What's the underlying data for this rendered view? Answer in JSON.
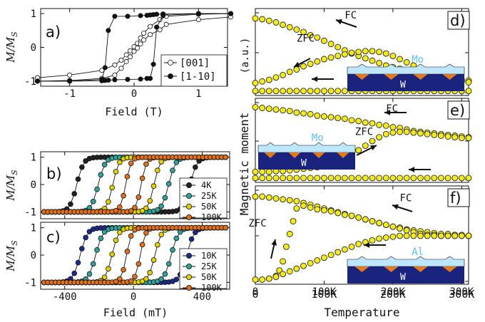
{
  "colors": {
    "hollow": "#ffffff",
    "black": "#111111",
    "k4": "#222222",
    "k10": "#1c2a8c",
    "k25": "#2fa39a",
    "k50": "#e2d000",
    "k100": "#e0701c",
    "yellow": "#f2ea19",
    "mo_layer": "#bfe6ff",
    "w_layer": "#1a237e",
    "triangle": "#e07a1c",
    "mo_text": "#5bbfff"
  },
  "chart_data": [
    {
      "id": "a",
      "type": "line",
      "panel_label": "a)",
      "ylabel": "M/M_S",
      "xlabel": "Field (T)",
      "xlim": [
        -1.45,
        1.45
      ],
      "ylim": [
        -1.15,
        1.15
      ],
      "xticks": [
        -1,
        0,
        1
      ],
      "yticks": [
        -1,
        0,
        1
      ],
      "xtick_labels": [
        "-1",
        "0",
        "1"
      ],
      "ytick_labels": [
        "-1",
        "0",
        "1"
      ],
      "legend_position": "bottom-right",
      "series": [
        {
          "name": "[001]",
          "marker": "hollow",
          "x": [
            -1.5,
            -1.0,
            -0.5,
            -0.3,
            -0.2,
            -0.12,
            -0.06,
            0.0,
            0.05,
            0.1,
            0.15,
            0.25,
            0.4,
            0.5,
            1.0,
            1.5
          ],
          "y_descending": [
            -0.9,
            -0.82,
            -0.68,
            -0.52,
            -0.38,
            -0.22,
            -0.1,
            0.02,
            0.12,
            0.28,
            0.42,
            0.62,
            0.82,
            0.92,
            0.98,
            1.0
          ],
          "y_ascending": [
            -1.0,
            -0.98,
            -0.92,
            -0.82,
            -0.62,
            -0.42,
            -0.28,
            -0.12,
            -0.02,
            0.1,
            0.22,
            0.38,
            0.52,
            0.68,
            0.82,
            0.9
          ]
        },
        {
          "name": "[1-10]",
          "marker": "filled",
          "x": [
            -1.5,
            -1.0,
            -0.5,
            -0.45,
            -0.4,
            -0.3,
            -0.1,
            0.1,
            0.2,
            0.25,
            0.3,
            0.35,
            0.45,
            1.0,
            1.5
          ],
          "y_descending": [
            -1.0,
            -1.0,
            -0.95,
            -0.6,
            0.5,
            0.92,
            0.92,
            0.94,
            0.95,
            0.96,
            0.97,
            0.98,
            0.99,
            1.0,
            1.0
          ],
          "y_ascending": [
            -1.0,
            -1.0,
            -0.99,
            -0.98,
            -0.97,
            -0.96,
            -0.95,
            -0.94,
            -0.92,
            -0.92,
            -0.5,
            0.6,
            0.95,
            1.0,
            1.0
          ]
        }
      ]
    },
    {
      "id": "b",
      "type": "line",
      "panel_label": "b)",
      "ylabel": "M/M_S",
      "xlabel": "",
      "xlim": [
        -540,
        560
      ],
      "ylim": [
        -1.25,
        1.2
      ],
      "xticks": [
        -400,
        0,
        400
      ],
      "yticks": [
        -1,
        0,
        1
      ],
      "ytick_labels": [
        "-1",
        "0",
        "1"
      ],
      "legend_position": "bottom-right",
      "series": [
        {
          "name": "4K",
          "color": "k4",
          "hc": 330,
          "w": 40
        },
        {
          "name": "25K",
          "color": "k25",
          "hc": 205,
          "w": 40
        },
        {
          "name": "50K",
          "color": "k50",
          "hc": 120,
          "w": 35
        },
        {
          "name": "100K",
          "color": "k100",
          "hc": 45,
          "w": 30
        }
      ]
    },
    {
      "id": "c",
      "type": "line",
      "panel_label": "c)",
      "ylabel": "M/M_S",
      "xlabel": "Field (mT)",
      "xlim": [
        -540,
        560
      ],
      "ylim": [
        -1.25,
        1.2
      ],
      "xticks": [
        -400,
        0,
        400
      ],
      "yticks": [
        -1,
        0,
        1
      ],
      "xtick_labels": [
        "-400",
        "0",
        "400"
      ],
      "ytick_labels": [
        "-1",
        "0",
        "1"
      ],
      "legend_position": "bottom-right",
      "series": [
        {
          "name": "10K",
          "color": "k10",
          "hc": 310,
          "w": 42
        },
        {
          "name": "25K",
          "color": "k25",
          "hc": 220,
          "w": 42
        },
        {
          "name": "50K",
          "color": "k50",
          "hc": 125,
          "w": 38
        },
        {
          "name": "100K",
          "color": "k100",
          "hc": 40,
          "w": 30
        }
      ]
    },
    {
      "id": "d",
      "type": "scatter",
      "panel_label": "d)",
      "xlim": [
        0,
        310
      ],
      "ylim": [
        0,
        1
      ],
      "xticks": [
        0,
        100,
        200,
        300
      ],
      "yticks": [
        0,
        0.5,
        1
      ],
      "series": [
        {
          "name": "FC",
          "x": [
            0,
            10,
            20,
            30,
            40,
            50,
            60,
            70,
            80,
            90,
            100,
            110,
            120,
            130,
            140,
            150,
            160,
            170,
            180,
            190,
            200,
            210,
            220,
            230,
            240,
            250,
            260,
            270,
            280,
            290,
            300,
            310
          ],
          "y": [
            0.93,
            0.92,
            0.9,
            0.88,
            0.85,
            0.82,
            0.79,
            0.76,
            0.72,
            0.69,
            0.65,
            0.61,
            0.57,
            0.53,
            0.49,
            0.46,
            0.43,
            0.4,
            0.37,
            0.34,
            0.32,
            0.3,
            0.28,
            0.26,
            0.24,
            0.22,
            0.2,
            0.19,
            0.18,
            0.17,
            0.16,
            0.15
          ]
        },
        {
          "name": "ZFC",
          "x": [
            0,
            10,
            20,
            30,
            40,
            50,
            60,
            70,
            80,
            90,
            100,
            110,
            120,
            130,
            140,
            150,
            160,
            170,
            180,
            190,
            200,
            210,
            220,
            230,
            240,
            250,
            260,
            270,
            280,
            290,
            300,
            310
          ],
          "y": [
            0.12,
            0.14,
            0.16,
            0.19,
            0.22,
            0.26,
            0.29,
            0.33,
            0.36,
            0.39,
            0.42,
            0.44,
            0.46,
            0.48,
            0.5,
            0.51,
            0.52,
            0.52,
            0.51,
            0.49,
            0.46,
            0.42,
            0.38,
            0.34,
            0.3,
            0.26,
            0.22,
            0.19,
            0.17,
            0.15,
            0.14,
            0.13
          ]
        },
        {
          "name": "baseline",
          "x": [
            0,
            10,
            20,
            30,
            40,
            50,
            60,
            70,
            80,
            90,
            100,
            110,
            120,
            130,
            140,
            150,
            160,
            170,
            180,
            190,
            200,
            210,
            220,
            230,
            240,
            250,
            260,
            270,
            280,
            290,
            300,
            310
          ],
          "y": [
            0.02,
            0.02,
            0.02,
            0.02,
            0.02,
            0.02,
            0.02,
            0.02,
            0.02,
            0.02,
            0.02,
            0.02,
            0.02,
            0.02,
            0.02,
            0.02,
            0.02,
            0.02,
            0.02,
            0.02,
            0.02,
            0.02,
            0.02,
            0.02,
            0.02,
            0.02,
            0.02,
            0.02,
            0.02,
            0.02,
            0.02,
            0.02
          ]
        }
      ],
      "annotations": [
        {
          "text": "FC",
          "at": [
            130,
            0.93
          ]
        },
        {
          "text": "ZFC",
          "at": [
            60,
            0.64
          ]
        }
      ],
      "inset": {
        "top_label": "Mo",
        "bottom_label": "W"
      }
    },
    {
      "id": "e",
      "type": "scatter",
      "panel_label": "e)",
      "xlim": [
        0,
        310
      ],
      "ylim": [
        0,
        1
      ],
      "xticks": [
        0,
        100,
        200,
        300
      ],
      "yticks": [
        0,
        0.5,
        1
      ],
      "series": [
        {
          "name": "FC",
          "x": [
            0,
            10,
            20,
            30,
            40,
            50,
            60,
            70,
            80,
            90,
            100,
            110,
            120,
            130,
            140,
            150,
            160,
            170,
            180,
            190,
            200,
            210,
            220,
            230,
            240,
            250,
            260,
            270,
            280,
            290,
            300,
            310
          ],
          "y": [
            0.94,
            0.93,
            0.92,
            0.91,
            0.9,
            0.89,
            0.87,
            0.86,
            0.85,
            0.83,
            0.82,
            0.81,
            0.8,
            0.79,
            0.77,
            0.76,
            0.74,
            0.73,
            0.71,
            0.7,
            0.68,
            0.67,
            0.65,
            0.63,
            0.62,
            0.61,
            0.6,
            0.59,
            0.58,
            0.57,
            0.56,
            0.55
          ]
        },
        {
          "name": "ZFC",
          "x": [
            0,
            10,
            20,
            30,
            40,
            50,
            60,
            70,
            80,
            90,
            100,
            110,
            120,
            130,
            140,
            150,
            160,
            170,
            180,
            190,
            200,
            210,
            220,
            230,
            240,
            250,
            260,
            270,
            280,
            290,
            300,
            310
          ],
          "y": [
            0.1,
            0.1,
            0.1,
            0.11,
            0.11,
            0.12,
            0.13,
            0.14,
            0.15,
            0.16,
            0.18,
            0.2,
            0.23,
            0.27,
            0.32,
            0.38,
            0.44,
            0.5,
            0.55,
            0.59,
            0.61,
            0.62,
            0.62,
            0.61,
            0.6,
            0.59,
            0.58,
            0.57,
            0.56,
            0.55,
            0.54,
            0.54
          ]
        },
        {
          "name": "baseline",
          "x": [
            0,
            10,
            20,
            30,
            40,
            50,
            60,
            70,
            80,
            90,
            100,
            110,
            120,
            130,
            140,
            150,
            160,
            170,
            180,
            190,
            200,
            210,
            220,
            230,
            240,
            250,
            260,
            270,
            280,
            290,
            300,
            310
          ],
          "y": [
            0.02,
            0.02,
            0.02,
            0.02,
            0.02,
            0.02,
            0.02,
            0.02,
            0.02,
            0.02,
            0.02,
            0.02,
            0.02,
            0.02,
            0.02,
            0.02,
            0.02,
            0.02,
            0.02,
            0.02,
            0.02,
            0.02,
            0.02,
            0.02,
            0.02,
            0.02,
            0.02,
            0.02,
            0.02,
            0.02,
            0.02,
            0.02
          ]
        }
      ],
      "annotations": [
        {
          "text": "FC",
          "at": [
            190,
            0.88
          ]
        },
        {
          "text": "ZFC",
          "at": [
            145,
            0.58
          ]
        }
      ],
      "inset": {
        "top_label": "Mo",
        "bottom_label": "W"
      }
    },
    {
      "id": "f",
      "type": "scatter",
      "panel_label": "f)",
      "xlim": [
        0,
        310
      ],
      "ylim": [
        0,
        1
      ],
      "xticks": [
        0,
        100,
        200,
        300
      ],
      "yticks": [
        0,
        0.5,
        1
      ],
      "xtick_labels": [
        "0",
        "100K",
        "200K",
        "300K"
      ],
      "xlabel": "Temperature",
      "series": [
        {
          "name": "FC",
          "x": [
            0,
            10,
            20,
            30,
            40,
            50,
            60,
            70,
            80,
            90,
            100,
            110,
            120,
            130,
            140,
            150,
            160,
            170,
            180,
            190,
            200,
            210,
            220,
            230,
            240,
            250,
            260,
            270,
            280,
            290,
            300,
            310
          ],
          "y": [
            0.93,
            0.93,
            0.92,
            0.91,
            0.9,
            0.89,
            0.88,
            0.86,
            0.84,
            0.82,
            0.8,
            0.78,
            0.76,
            0.74,
            0.72,
            0.7,
            0.68,
            0.66,
            0.64,
            0.62,
            0.6,
            0.59,
            0.57,
            0.56,
            0.55,
            0.54,
            0.53,
            0.52,
            0.52,
            0.51,
            0.51,
            0.5
          ]
        },
        {
          "name": "ZFC",
          "x": [
            20,
            30,
            35,
            40,
            45,
            50,
            55,
            60,
            70,
            80,
            90,
            100,
            110,
            120,
            130,
            140,
            150,
            160,
            170,
            180,
            190,
            200,
            210,
            220,
            230,
            240,
            250,
            260,
            270,
            280,
            290,
            300,
            310
          ],
          "y": [
            0.03,
            0.06,
            0.12,
            0.22,
            0.38,
            0.52,
            0.66,
            0.8,
            0.83,
            0.81,
            0.79,
            0.78,
            0.77,
            0.75,
            0.73,
            0.72,
            0.7,
            0.68,
            0.66,
            0.64,
            0.62,
            0.6,
            0.58,
            0.56,
            0.54,
            0.52,
            0.51,
            0.51,
            0.5,
            0.5,
            0.5,
            0.5,
            0.5
          ]
        },
        {
          "name": "cooling",
          "x": [
            0,
            10,
            20,
            30,
            40,
            50,
            60,
            70,
            80,
            90,
            100,
            110,
            120,
            130,
            140,
            150,
            160,
            170,
            180,
            190,
            200,
            210,
            220,
            230,
            240,
            250,
            260,
            270,
            280,
            290,
            300,
            310
          ],
          "y": [
            0.02,
            0.02,
            0.03,
            0.05,
            0.08,
            0.11,
            0.14,
            0.17,
            0.2,
            0.23,
            0.26,
            0.29,
            0.32,
            0.35,
            0.38,
            0.41,
            0.43,
            0.45,
            0.47,
            0.48,
            0.49,
            0.5,
            0.5,
            0.5,
            0.5,
            0.5,
            0.5,
            0.5,
            0.5,
            0.5,
            0.5,
            0.5
          ]
        }
      ],
      "annotations": [
        {
          "text": "FC",
          "at": [
            210,
            0.88
          ]
        },
        {
          "text": "ZFC",
          "at": [
            -10,
            0.6
          ]
        }
      ],
      "inset": {
        "top_label": "Al",
        "bottom_label": "W"
      }
    }
  ],
  "labels": {
    "mag_moment": "Magnetic moment",
    "au": "(a.u.)",
    "leg_a_001": "[001]",
    "leg_a_1m10": "[1-10]"
  }
}
